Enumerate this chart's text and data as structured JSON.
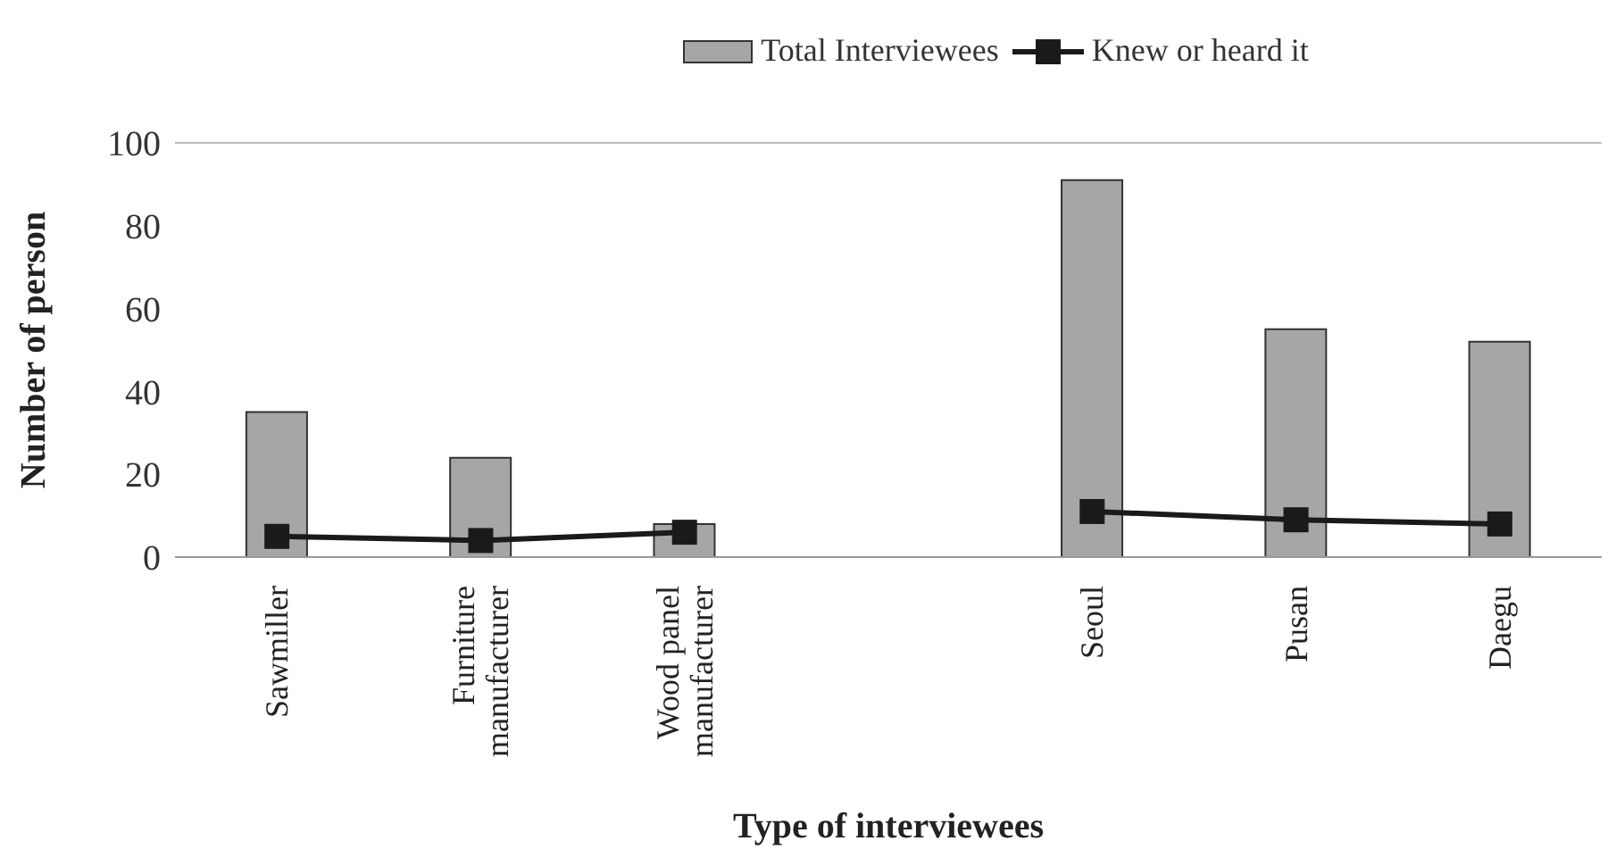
{
  "chart_data": {
    "type": "bar",
    "xlabel": "Type of interviewees",
    "ylabel": "Number of person",
    "categories": [
      "Sawmiller",
      "Furniture manufacturer",
      "Wood panel manufacturer",
      null,
      "Seoul",
      "Pusan",
      "Daegu"
    ],
    "series": [
      {
        "name": "Total Interviewees",
        "color": "#a6a6a6",
        "values": [
          35,
          24,
          8,
          null,
          91,
          55,
          52
        ]
      },
      {
        "name": "Knew or heard it",
        "type": "line",
        "color": "#1a1a1a",
        "values": [
          5,
          4,
          6,
          null,
          11,
          9,
          8
        ]
      }
    ],
    "ylim": [
      0,
      100
    ],
    "yticks": [
      0,
      20,
      40,
      60,
      80,
      100
    ],
    "grid": false,
    "legend": "top",
    "marker": "square",
    "line_style": "solid"
  }
}
